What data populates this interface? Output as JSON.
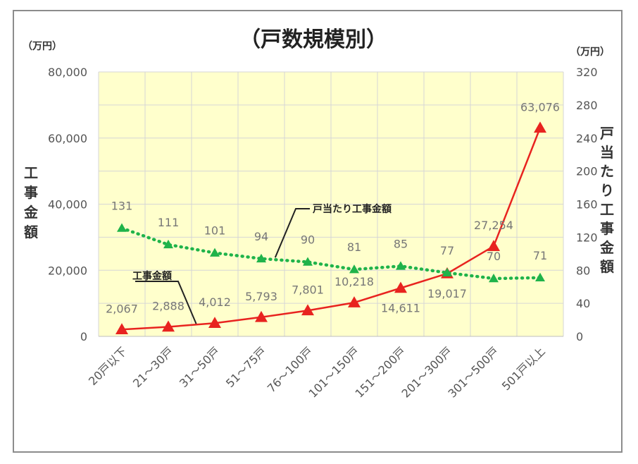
{
  "chart_data": {
    "type": "line",
    "title": "（戸数規模別）",
    "left_unit": "（万円）",
    "right_unit": "（万円）",
    "ylabel": "工事金額",
    "y2label": "戸当たり工事金額",
    "ylim": [
      0,
      80000
    ],
    "y2lim": [
      0,
      320
    ],
    "yticks": [
      "80,000",
      "60,000",
      "40,000",
      "20,000",
      "0"
    ],
    "y2ticks": [
      "320",
      "280",
      "240",
      "200",
      "160",
      "120",
      "80",
      "40",
      "0"
    ],
    "categories": [
      "20戸以下",
      "21～30戸",
      "31～50戸",
      "51～75戸",
      "76～100戸",
      "101～150戸",
      "151～200戸",
      "201～300戸",
      "301～500戸",
      "501戸以上"
    ],
    "grid": true,
    "series": [
      {
        "name": "工事金額",
        "axis": "left",
        "color": "#e8231f",
        "values": [
          2067,
          2888,
          4012,
          5793,
          7801,
          10218,
          14611,
          19017,
          27254,
          63076
        ],
        "labels": [
          "2,067",
          "2,888",
          "4,012",
          "5,793",
          "7,801",
          "10,218",
          "14,611",
          "19,017",
          "27,254",
          "63,076"
        ]
      },
      {
        "name": "戸当たり工事金額",
        "axis": "right",
        "color": "#1fb34a",
        "values": [
          131,
          111,
          101,
          94,
          90,
          81,
          85,
          77,
          70,
          71
        ],
        "labels": [
          "131",
          "111",
          "101",
          "94",
          "90",
          "81",
          "85",
          "77",
          "70",
          "71"
        ]
      }
    ],
    "plot_background": "#ffffcc",
    "grid_color": "#d6d6d6"
  }
}
